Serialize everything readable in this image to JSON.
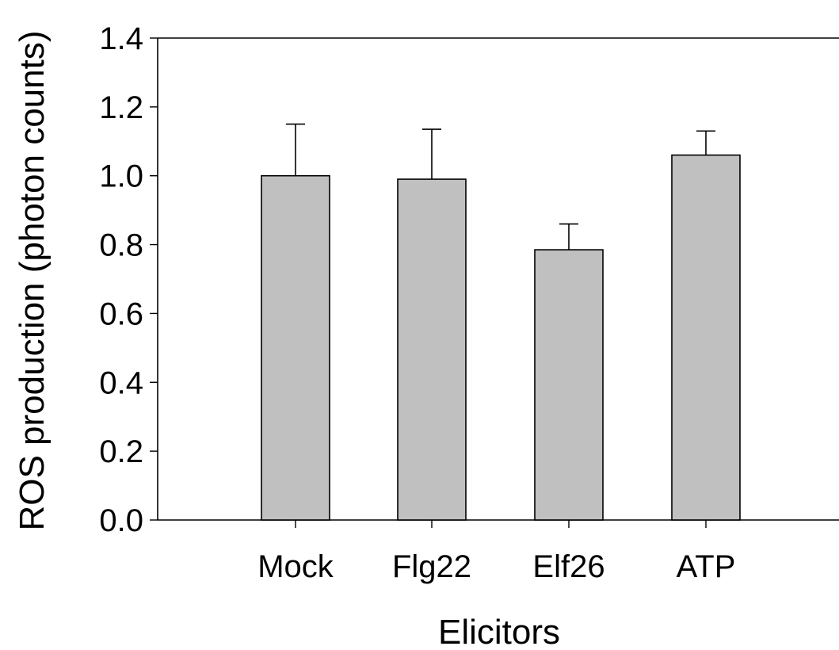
{
  "chart_data": {
    "type": "bar",
    "categories": [
      "Mock",
      "Flg22",
      "Elf26",
      "ATP"
    ],
    "values": [
      1.0,
      0.99,
      0.785,
      1.06
    ],
    "error_upper": [
      0.15,
      0.145,
      0.075,
      0.07
    ],
    "xlabel": "Elicitors",
    "ylabel": "ROS production (photon counts)",
    "ylim": [
      0,
      1.4
    ],
    "yticks": [
      "0.0",
      "0.2",
      "0.4",
      "0.6",
      "0.8",
      "1.0",
      "1.2",
      "1.4"
    ],
    "grid": false,
    "bar_color": "#c0c0c0"
  }
}
